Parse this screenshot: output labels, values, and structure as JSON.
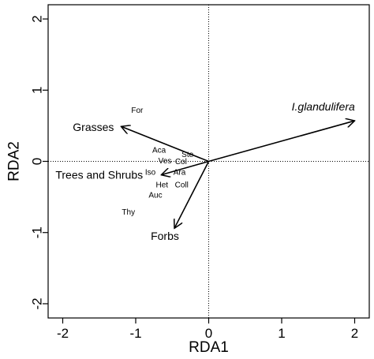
{
  "chart_data": {
    "type": "scatter",
    "xlabel": "RDA1",
    "ylabel": "RDA2",
    "xlim": [
      -2.2,
      2.2
    ],
    "ylim": [
      -2.2,
      2.2
    ],
    "xticks": [
      -2,
      -1,
      0,
      1,
      2
    ],
    "yticks": [
      -2,
      -1,
      0,
      1,
      2
    ],
    "xtick_labels": [
      "-2",
      "-1",
      "0",
      "1",
      "2"
    ],
    "ytick_labels": [
      "-2",
      "-1",
      "0",
      "1",
      "2"
    ],
    "grid": false,
    "reference_lines": [
      0,
      0
    ],
    "vectors": [
      {
        "label": "I.glandulifera",
        "x": 2.0,
        "y": 0.57,
        "label_x": 1.57,
        "label_y": 0.77,
        "italic": true
      },
      {
        "label": "Grasses",
        "x": -1.2,
        "y": 0.49,
        "label_x": -1.58,
        "label_y": 0.48,
        "italic": false
      },
      {
        "label": "Trees and Shrubs",
        "x": -0.65,
        "y": -0.19,
        "label_x": -1.5,
        "label_y": -0.19,
        "italic": false
      },
      {
        "label": "Forbs",
        "x": -0.47,
        "y": -0.94,
        "label_x": -0.6,
        "label_y": -1.05,
        "italic": false
      }
    ],
    "points": [
      {
        "label": "For",
        "x": -0.98,
        "y": 0.71
      },
      {
        "label": "Aca",
        "x": -0.68,
        "y": 0.15
      },
      {
        "label": "Ste",
        "x": -0.29,
        "y": 0.09
      },
      {
        "label": "Ves",
        "x": -0.6,
        "y": 0.0
      },
      {
        "label": "Col",
        "x": -0.38,
        "y": -0.01
      },
      {
        "label": "Iso",
        "x": -0.8,
        "y": -0.16
      },
      {
        "label": "Ara",
        "x": -0.4,
        "y": -0.16
      },
      {
        "label": "Het",
        "x": -0.64,
        "y": -0.34
      },
      {
        "label": "Coll",
        "x": -0.37,
        "y": -0.34
      },
      {
        "label": "Auc",
        "x": -0.73,
        "y": -0.48
      },
      {
        "label": "Thy",
        "x": -1.1,
        "y": -0.72
      }
    ]
  }
}
